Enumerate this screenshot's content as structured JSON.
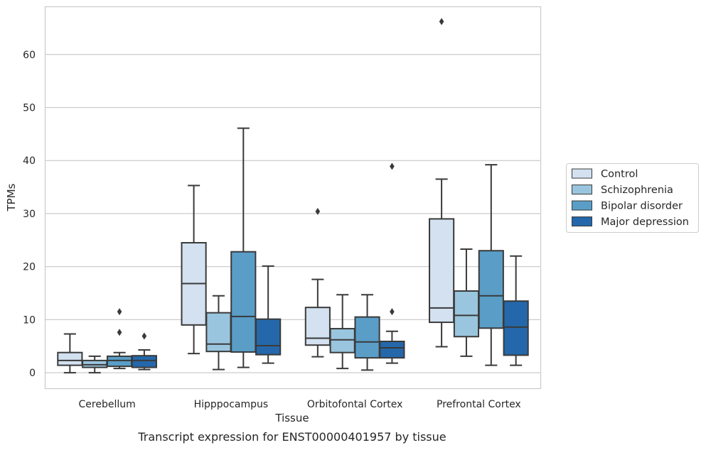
{
  "chart_data": {
    "type": "box",
    "caption": "Transcript expression for ENST00000401957 by tissue",
    "xlabel": "Tissue",
    "ylabel": "TPMs",
    "ylim": [
      -3,
      69
    ],
    "yticks": [
      0,
      10,
      20,
      30,
      40,
      50,
      60
    ],
    "grid": "horizontal",
    "legend_position": "right",
    "categories": [
      "Cerebellum",
      "Hipppocampus",
      "Orbitofontal Cortex",
      "Prefrontal Cortex"
    ],
    "series": [
      {
        "name": "Control",
        "color": "#d3e1f0",
        "boxes": [
          {
            "whisker_low": 0.0,
            "q1": 1.4,
            "median": 2.3,
            "q3": 3.8,
            "whisker_high": 7.3,
            "outliers": []
          },
          {
            "whisker_low": 3.6,
            "q1": 9.0,
            "median": 16.8,
            "q3": 24.5,
            "whisker_high": 35.3,
            "outliers": []
          },
          {
            "whisker_low": 3.0,
            "q1": 5.2,
            "median": 6.5,
            "q3": 12.3,
            "whisker_high": 17.6,
            "outliers": [
              30.4
            ]
          },
          {
            "whisker_low": 4.9,
            "q1": 9.5,
            "median": 12.2,
            "q3": 29.0,
            "whisker_high": 36.5,
            "outliers": [
              66.2
            ]
          }
        ]
      },
      {
        "name": "Schizophrenia",
        "color": "#9ac5de",
        "boxes": [
          {
            "whisker_low": 0.0,
            "q1": 1.0,
            "median": 1.5,
            "q3": 2.3,
            "whisker_high": 3.1,
            "outliers": []
          },
          {
            "whisker_low": 0.6,
            "q1": 4.0,
            "median": 5.4,
            "q3": 11.3,
            "whisker_high": 14.5,
            "outliers": []
          },
          {
            "whisker_low": 0.8,
            "q1": 3.8,
            "median": 6.2,
            "q3": 8.3,
            "whisker_high": 14.7,
            "outliers": []
          },
          {
            "whisker_low": 3.1,
            "q1": 6.8,
            "median": 10.8,
            "q3": 15.4,
            "whisker_high": 23.3,
            "outliers": []
          }
        ]
      },
      {
        "name": "Bipolar disorder",
        "color": "#5a9ec8",
        "boxes": [
          {
            "whisker_low": 0.8,
            "q1": 1.2,
            "median": 2.3,
            "q3": 3.1,
            "whisker_high": 3.8,
            "outliers": [
              7.6,
              11.5
            ]
          },
          {
            "whisker_low": 1.0,
            "q1": 3.9,
            "median": 10.6,
            "q3": 22.8,
            "whisker_high": 46.1,
            "outliers": []
          },
          {
            "whisker_low": 0.5,
            "q1": 2.8,
            "median": 5.8,
            "q3": 10.5,
            "whisker_high": 14.7,
            "outliers": []
          },
          {
            "whisker_low": 1.4,
            "q1": 8.4,
            "median": 14.5,
            "q3": 23.0,
            "whisker_high": 39.2,
            "outliers": []
          }
        ]
      },
      {
        "name": "Major depression",
        "color": "#2468ab",
        "boxes": [
          {
            "whisker_low": 0.6,
            "q1": 1.0,
            "median": 2.3,
            "q3": 3.2,
            "whisker_high": 4.3,
            "outliers": [
              6.9
            ]
          },
          {
            "whisker_low": 1.8,
            "q1": 3.4,
            "median": 5.1,
            "q3": 10.1,
            "whisker_high": 20.1,
            "outliers": []
          },
          {
            "whisker_low": 1.8,
            "q1": 2.8,
            "median": 4.7,
            "q3": 5.9,
            "whisker_high": 7.8,
            "outliers": [
              11.5,
              38.9
            ]
          },
          {
            "whisker_low": 1.4,
            "q1": 3.3,
            "median": 8.6,
            "q3": 13.5,
            "whisker_high": 22.0,
            "outliers": []
          }
        ]
      }
    ]
  }
}
